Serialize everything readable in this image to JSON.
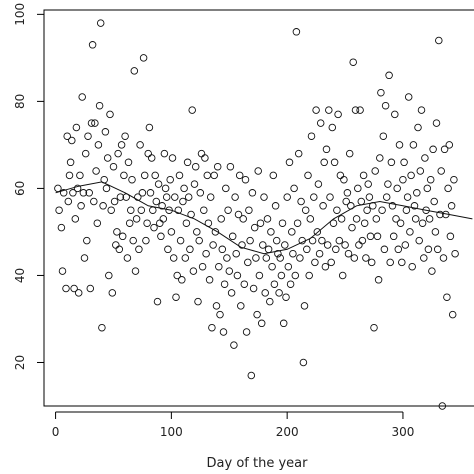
{
  "chart_data": {
    "type": "scatter",
    "title": "",
    "xlabel": "Day of the year",
    "ylabel": "",
    "xlim": [
      -10,
      370
    ],
    "ylim": [
      10,
      101
    ],
    "x_ticks": [
      0,
      100,
      200,
      300
    ],
    "y_ticks": [
      20,
      40,
      60,
      80,
      100
    ],
    "x_tick_labels": [
      "0",
      "100",
      "200",
      "300"
    ],
    "y_tick_labels": [
      "20",
      "40",
      "60",
      "80",
      "100"
    ],
    "grid": false,
    "legend": "none",
    "points": [
      [
        2,
        60
      ],
      [
        3,
        55
      ],
      [
        5,
        51
      ],
      [
        6,
        41
      ],
      [
        7,
        59
      ],
      [
        9,
        37
      ],
      [
        10,
        72
      ],
      [
        11,
        57
      ],
      [
        12,
        63
      ],
      [
        13,
        66
      ],
      [
        14,
        71
      ],
      [
        15,
        59
      ],
      [
        16,
        37
      ],
      [
        17,
        53
      ],
      [
        18,
        74
      ],
      [
        19,
        60
      ],
      [
        20,
        36
      ],
      [
        21,
        63
      ],
      [
        22,
        56
      ],
      [
        23,
        81
      ],
      [
        24,
        59
      ],
      [
        25,
        44
      ],
      [
        26,
        68
      ],
      [
        27,
        48
      ],
      [
        28,
        72
      ],
      [
        29,
        59
      ],
      [
        30,
        37
      ],
      [
        31,
        75
      ],
      [
        32,
        93
      ],
      [
        33,
        57
      ],
      [
        34,
        75
      ],
      [
        35,
        64
      ],
      [
        36,
        52
      ],
      [
        37,
        70
      ],
      [
        38,
        79
      ],
      [
        39,
        98
      ],
      [
        40,
        28
      ],
      [
        41,
        56
      ],
      [
        42,
        62
      ],
      [
        43,
        73
      ],
      [
        44,
        60
      ],
      [
        45,
        67
      ],
      [
        46,
        40
      ],
      [
        47,
        77
      ],
      [
        48,
        55
      ],
      [
        49,
        36
      ],
      [
        50,
        65
      ],
      [
        51,
        57
      ],
      [
        52,
        47
      ],
      [
        53,
        50
      ],
      [
        54,
        68
      ],
      [
        55,
        46
      ],
      [
        56,
        58
      ],
      [
        57,
        70
      ],
      [
        58,
        49
      ],
      [
        59,
        63
      ],
      [
        60,
        72
      ],
      [
        61,
        58
      ],
      [
        62,
        44
      ],
      [
        63,
        66
      ],
      [
        64,
        52
      ],
      [
        65,
        55
      ],
      [
        66,
        62
      ],
      [
        67,
        48
      ],
      [
        68,
        87
      ],
      [
        69,
        41
      ],
      [
        70,
        53
      ],
      [
        71,
        58
      ],
      [
        72,
        46
      ],
      [
        73,
        70
      ],
      [
        74,
        55
      ],
      [
        75,
        59
      ],
      [
        76,
        90
      ],
      [
        77,
        63
      ],
      [
        78,
        48
      ],
      [
        79,
        52
      ],
      [
        80,
        68
      ],
      [
        81,
        74
      ],
      [
        82,
        59
      ],
      [
        83,
        67
      ],
      [
        84,
        55
      ],
      [
        85,
        51
      ],
      [
        86,
        63
      ],
      [
        87,
        57
      ],
      [
        88,
        34
      ],
      [
        89,
        61
      ],
      [
        90,
        52
      ],
      [
        91,
        49
      ],
      [
        92,
        56
      ],
      [
        93,
        53
      ],
      [
        94,
        68
      ],
      [
        95,
        60
      ],
      [
        96,
        58
      ],
      [
        97,
        46
      ],
      [
        98,
        55
      ],
      [
        99,
        62
      ],
      [
        100,
        50
      ],
      [
        101,
        67
      ],
      [
        102,
        44
      ],
      [
        103,
        58
      ],
      [
        104,
        35
      ],
      [
        105,
        40
      ],
      [
        106,
        55
      ],
      [
        107,
        63
      ],
      [
        108,
        48
      ],
      [
        109,
        39
      ],
      [
        110,
        57
      ],
      [
        111,
        60
      ],
      [
        112,
        44
      ],
      [
        113,
        52
      ],
      [
        114,
        66
      ],
      [
        115,
        58
      ],
      [
        116,
        46
      ],
      [
        117,
        54
      ],
      [
        118,
        78
      ],
      [
        119,
        41
      ],
      [
        120,
        61
      ],
      [
        121,
        65
      ],
      [
        122,
        50
      ],
      [
        123,
        34
      ],
      [
        124,
        48
      ],
      [
        125,
        59
      ],
      [
        126,
        68
      ],
      [
        127,
        42
      ],
      [
        128,
        55
      ],
      [
        129,
        67
      ],
      [
        130,
        45
      ],
      [
        131,
        63
      ],
      [
        132,
        52
      ],
      [
        133,
        39
      ],
      [
        134,
        58
      ],
      [
        135,
        28
      ],
      [
        136,
        47
      ],
      [
        137,
        63
      ],
      [
        138,
        50
      ],
      [
        139,
        33
      ],
      [
        140,
        65
      ],
      [
        141,
        42
      ],
      [
        142,
        31
      ],
      [
        143,
        53
      ],
      [
        144,
        46
      ],
      [
        145,
        27
      ],
      [
        146,
        38
      ],
      [
        147,
        60
      ],
      [
        148,
        44
      ],
      [
        149,
        55
      ],
      [
        150,
        41
      ],
      [
        151,
        65
      ],
      [
        152,
        36
      ],
      [
        153,
        49
      ],
      [
        154,
        24
      ],
      [
        155,
        58
      ],
      [
        156,
        45
      ],
      [
        157,
        40
      ],
      [
        158,
        54
      ],
      [
        159,
        63
      ],
      [
        160,
        33
      ],
      [
        161,
        47
      ],
      [
        162,
        53
      ],
      [
        163,
        38
      ],
      [
        164,
        62
      ],
      [
        165,
        27
      ],
      [
        166,
        43
      ],
      [
        167,
        55
      ],
      [
        168,
        48
      ],
      [
        169,
        17
      ],
      [
        170,
        59
      ],
      [
        171,
        37
      ],
      [
        172,
        51
      ],
      [
        173,
        44
      ],
      [
        174,
        31
      ],
      [
        175,
        64
      ],
      [
        176,
        40
      ],
      [
        177,
        52
      ],
      [
        178,
        29
      ],
      [
        179,
        47
      ],
      [
        180,
        58
      ],
      [
        181,
        36
      ],
      [
        182,
        44
      ],
      [
        183,
        53
      ],
      [
        184,
        46
      ],
      [
        185,
        34
      ],
      [
        186,
        50
      ],
      [
        187,
        42
      ],
      [
        188,
        63
      ],
      [
        189,
        38
      ],
      [
        190,
        56
      ],
      [
        191,
        48
      ],
      [
        192,
        45
      ],
      [
        193,
        36
      ],
      [
        194,
        44
      ],
      [
        195,
        40
      ],
      [
        196,
        52
      ],
      [
        197,
        29
      ],
      [
        198,
        47
      ],
      [
        199,
        35
      ],
      [
        200,
        58
      ],
      [
        201,
        42
      ],
      [
        202,
        66
      ],
      [
        203,
        38
      ],
      [
        204,
        50
      ],
      [
        205,
        45
      ],
      [
        206,
        60
      ],
      [
        207,
        40
      ],
      [
        208,
        96
      ],
      [
        209,
        52
      ],
      [
        210,
        68
      ],
      [
        211,
        44
      ],
      [
        212,
        57
      ],
      [
        213,
        48
      ],
      [
        214,
        20
      ],
      [
        215,
        33
      ],
      [
        216,
        55
      ],
      [
        217,
        46
      ],
      [
        218,
        63
      ],
      [
        219,
        40
      ],
      [
        220,
        53
      ],
      [
        221,
        72
      ],
      [
        222,
        48
      ],
      [
        223,
        58
      ],
      [
        224,
        43
      ],
      [
        225,
        78
      ],
      [
        226,
        50
      ],
      [
        227,
        61
      ],
      [
        228,
        45
      ],
      [
        229,
        75
      ],
      [
        230,
        48
      ],
      [
        231,
        56
      ],
      [
        232,
        66
      ],
      [
        233,
        42
      ],
      [
        234,
        69
      ],
      [
        235,
        47
      ],
      [
        236,
        78
      ],
      [
        237,
        58
      ],
      [
        238,
        43
      ],
      [
        239,
        74
      ],
      [
        240,
        52
      ],
      [
        241,
        66
      ],
      [
        242,
        46
      ],
      [
        243,
        55
      ],
      [
        244,
        77
      ],
      [
        245,
        48
      ],
      [
        246,
        63
      ],
      [
        247,
        53
      ],
      [
        248,
        40
      ],
      [
        249,
        62
      ],
      [
        250,
        47
      ],
      [
        251,
        57
      ],
      [
        252,
        59
      ],
      [
        253,
        45
      ],
      [
        254,
        68
      ],
      [
        255,
        56
      ],
      [
        256,
        51
      ],
      [
        257,
        89
      ],
      [
        258,
        44
      ],
      [
        259,
        78
      ],
      [
        260,
        53
      ],
      [
        261,
        60
      ],
      [
        262,
        47
      ],
      [
        263,
        78
      ],
      [
        264,
        57
      ],
      [
        265,
        48
      ],
      [
        266,
        63
      ],
      [
        267,
        52
      ],
      [
        268,
        44
      ],
      [
        269,
        55
      ],
      [
        270,
        61
      ],
      [
        271,
        58
      ],
      [
        272,
        49
      ],
      [
        273,
        43
      ],
      [
        274,
        56
      ],
      [
        275,
        28
      ],
      [
        276,
        64
      ],
      [
        277,
        53
      ],
      [
        278,
        49
      ],
      [
        279,
        39
      ],
      [
        280,
        67
      ],
      [
        281,
        82
      ],
      [
        282,
        55
      ],
      [
        283,
        72
      ],
      [
        284,
        46
      ],
      [
        285,
        79
      ],
      [
        286,
        58
      ],
      [
        287,
        61
      ],
      [
        288,
        86
      ],
      [
        289,
        43
      ],
      [
        290,
        66
      ],
      [
        291,
        56
      ],
      [
        292,
        49
      ],
      [
        293,
        77
      ],
      [
        294,
        53
      ],
      [
        295,
        60
      ],
      [
        296,
        46
      ],
      [
        297,
        70
      ],
      [
        298,
        52
      ],
      [
        299,
        43
      ],
      [
        300,
        62
      ],
      [
        301,
        66
      ],
      [
        302,
        47
      ],
      [
        303,
        55
      ],
      [
        304,
        58
      ],
      [
        305,
        81
      ],
      [
        306,
        50
      ],
      [
        307,
        63
      ],
      [
        308,
        42
      ],
      [
        309,
        70
      ],
      [
        310,
        56
      ],
      [
        311,
        53
      ],
      [
        312,
        59
      ],
      [
        313,
        74
      ],
      [
        314,
        48
      ],
      [
        315,
        64
      ],
      [
        316,
        78
      ],
      [
        317,
        52
      ],
      [
        318,
        44
      ],
      [
        319,
        67
      ],
      [
        320,
        55
      ],
      [
        321,
        60
      ],
      [
        322,
        46
      ],
      [
        323,
        53
      ],
      [
        324,
        62
      ],
      [
        325,
        41
      ],
      [
        326,
        69
      ],
      [
        327,
        57
      ],
      [
        328,
        50
      ],
      [
        329,
        75
      ],
      [
        330,
        46
      ],
      [
        331,
        94
      ],
      [
        332,
        54
      ],
      [
        333,
        64
      ],
      [
        334,
        10
      ],
      [
        335,
        44
      ],
      [
        336,
        69
      ],
      [
        337,
        54
      ],
      [
        338,
        35
      ],
      [
        339,
        60
      ],
      [
        340,
        70
      ],
      [
        341,
        49
      ],
      [
        342,
        56
      ],
      [
        343,
        31
      ],
      [
        344,
        62
      ],
      [
        345,
        45
      ]
    ],
    "smooth_line": [
      [
        0,
        59
      ],
      [
        20,
        60.5
      ],
      [
        40,
        61.5
      ],
      [
        60,
        59
      ],
      [
        80,
        56
      ],
      [
        100,
        55
      ],
      [
        120,
        53
      ],
      [
        140,
        50
      ],
      [
        160,
        46.5
      ],
      [
        180,
        45
      ],
      [
        200,
        46
      ],
      [
        220,
        48.5
      ],
      [
        240,
        53
      ],
      [
        260,
        56
      ],
      [
        280,
        57
      ],
      [
        300,
        56
      ],
      [
        320,
        55
      ],
      [
        340,
        54
      ],
      [
        360,
        53
      ]
    ]
  }
}
